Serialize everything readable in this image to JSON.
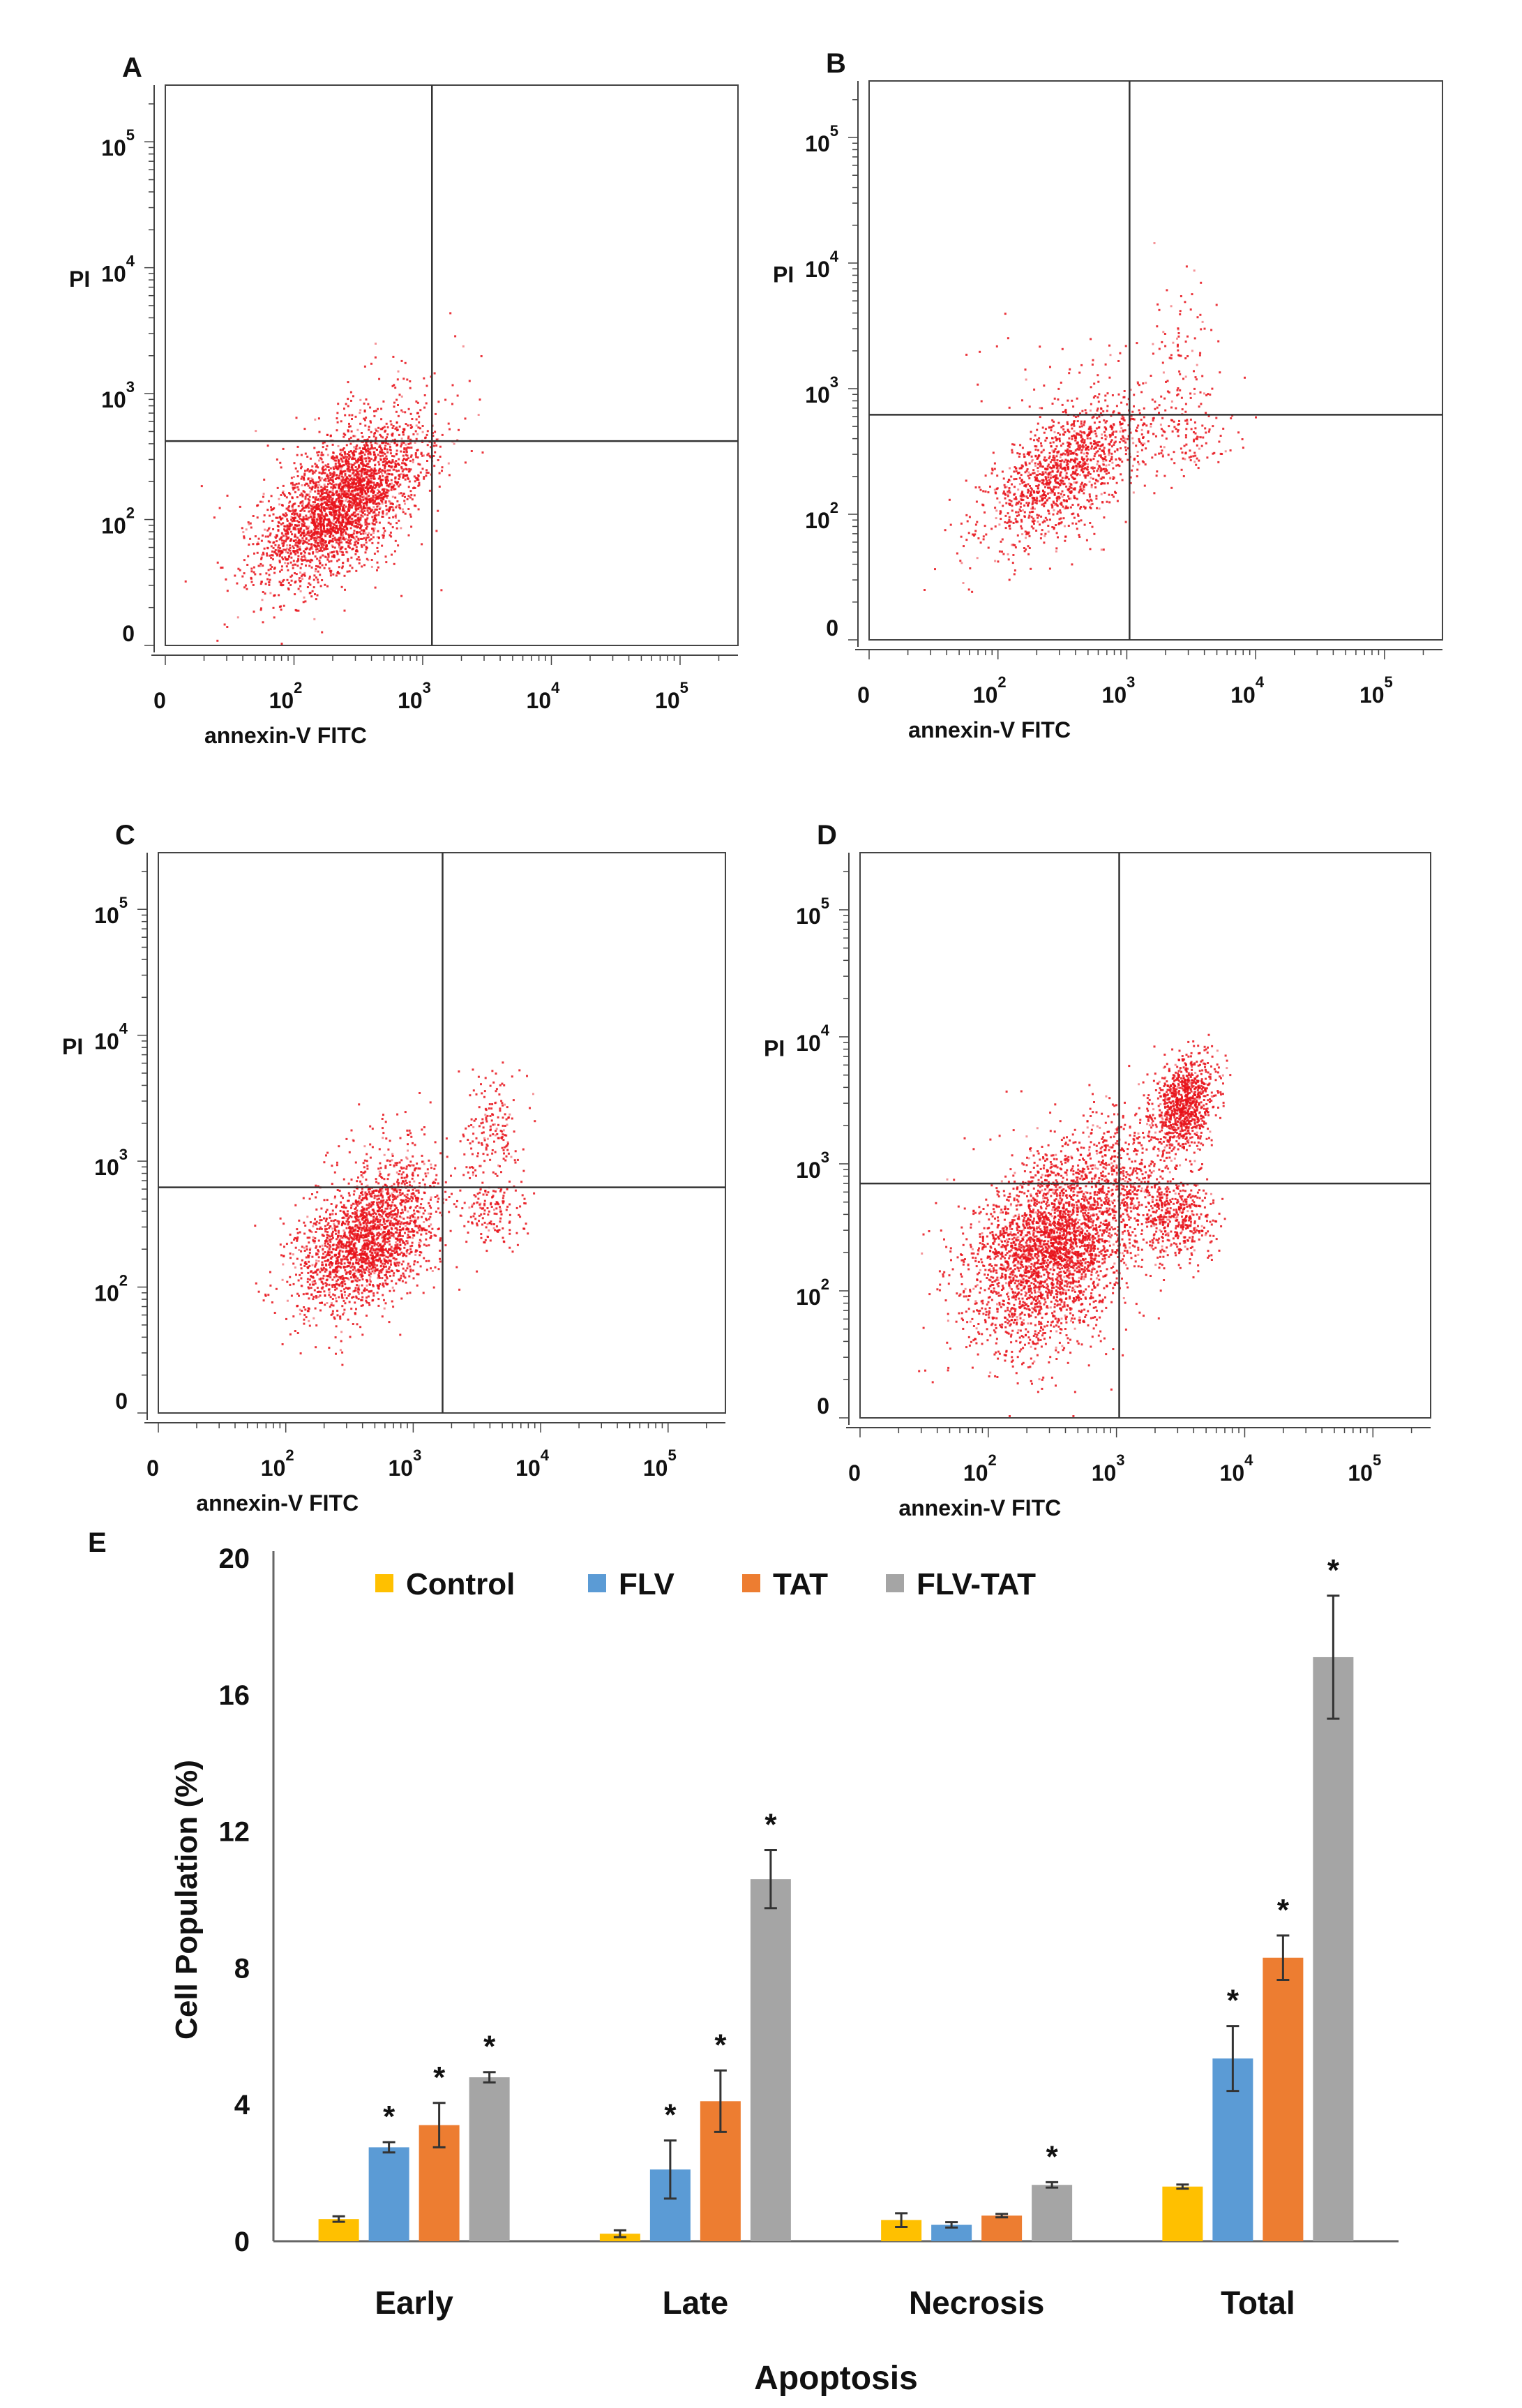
{
  "chart_data": [
    {
      "panel": "A",
      "type": "scatter",
      "xlabel": "annexin-V FITC",
      "ylabel": "PI",
      "x_ticks": [
        "0",
        "10|2",
        "10|3",
        "10|4",
        "10|5"
      ],
      "y_ticks": [
        "0",
        "10|2",
        "10|3",
        "10|4",
        "10|5"
      ],
      "quadrant": {
        "x": 1180,
        "y": 420
      },
      "clusters": [
        {
          "x": 230,
          "y": 135,
          "sx": 0.3,
          "sy": 0.3,
          "rho": 0.6,
          "n": 2600
        },
        {
          "x": 300,
          "y": 200,
          "sx": 0.4,
          "sy": 0.4,
          "rho": 0.5,
          "n": 500
        }
      ]
    },
    {
      "panel": "B",
      "type": "scatter",
      "xlabel": "annexin-V FITC",
      "ylabel": "PI",
      "x_ticks": [
        "0",
        "10|2",
        "10|3",
        "10|4",
        "10|5"
      ],
      "y_ticks": [
        "0",
        "10|2",
        "10|3",
        "10|4",
        "10|5"
      ],
      "quadrant": {
        "x": 1050,
        "y": 620
      },
      "clusters": [
        {
          "x": 320,
          "y": 220,
          "sx": 0.3,
          "sy": 0.28,
          "rho": 0.6,
          "n": 1300
        },
        {
          "x": 2700,
          "y": 1800,
          "sx": 0.12,
          "sy": 0.28,
          "rho": 0.0,
          "n": 80
        },
        {
          "x": 2600,
          "y": 420,
          "sx": 0.18,
          "sy": 0.15,
          "rho": 0.0,
          "n": 110
        },
        {
          "x": 700,
          "y": 700,
          "sx": 0.5,
          "sy": 0.4,
          "rho": 0.0,
          "n": 120
        }
      ]
    },
    {
      "panel": "C",
      "type": "scatter",
      "xlabel": "annexin-V FITC",
      "ylabel": "PI",
      "x_ticks": [
        "0",
        "10|2",
        "10|3",
        "10|4",
        "10|5"
      ],
      "y_ticks": [
        "0",
        "10|2",
        "10|3",
        "10|4",
        "10|5"
      ],
      "quadrant": {
        "x": 1700,
        "y": 620
      },
      "clusters": [
        {
          "x": 420,
          "y": 230,
          "sx": 0.27,
          "sy": 0.28,
          "rho": 0.45,
          "n": 2100
        },
        {
          "x": 4200,
          "y": 2000,
          "sx": 0.1,
          "sy": 0.22,
          "rho": 0.0,
          "n": 160
        },
        {
          "x": 4100,
          "y": 420,
          "sx": 0.13,
          "sy": 0.15,
          "rho": 0.0,
          "n": 160
        },
        {
          "x": 650,
          "y": 850,
          "sx": 0.2,
          "sy": 0.25,
          "rho": 0.0,
          "n": 140
        }
      ]
    },
    {
      "panel": "D",
      "type": "scatter",
      "xlabel": "annexin-V FITC",
      "ylabel": "PI",
      "x_ticks": [
        "0",
        "10|2",
        "10|3",
        "10|4",
        "10|5"
      ],
      "y_ticks": [
        "0",
        "10|2",
        "10|3",
        "10|4",
        "10|5"
      ],
      "quadrant": {
        "x": 1050,
        "y": 700
      },
      "clusters": [
        {
          "x": 330,
          "y": 230,
          "sx": 0.33,
          "sy": 0.38,
          "rho": 0.35,
          "n": 3300
        },
        {
          "x": 3300,
          "y": 3000,
          "sx": 0.12,
          "sy": 0.18,
          "rho": 0.3,
          "n": 900
        },
        {
          "x": 3000,
          "y": 380,
          "sx": 0.15,
          "sy": 0.15,
          "rho": 0.0,
          "n": 420
        },
        {
          "x": 1300,
          "y": 900,
          "sx": 0.25,
          "sy": 0.3,
          "rho": 0.0,
          "n": 350
        }
      ]
    },
    {
      "panel": "E",
      "type": "bar",
      "xlabel": "Apoptosis",
      "ylabel": "Cell Population (%)",
      "categories": [
        "Early",
        "Late",
        "Necrosis",
        "Total"
      ],
      "ylim": [
        0,
        20
      ],
      "yticks": [
        0,
        4,
        8,
        12,
        16,
        20
      ],
      "legend_position": "top",
      "significance_marker": "*",
      "series": [
        {
          "name": "Control",
          "color": "#FFC000",
          "values": [
            0.65,
            0.22,
            0.62,
            1.6
          ],
          "errors": [
            0.08,
            0.1,
            0.2,
            0.06
          ],
          "significant": [
            false,
            false,
            false,
            false
          ]
        },
        {
          "name": "FLV",
          "color": "#5B9BD5",
          "values": [
            2.75,
            2.1,
            0.48,
            5.35
          ],
          "errors": [
            0.15,
            0.85,
            0.08,
            0.95
          ],
          "significant": [
            true,
            true,
            false,
            true
          ]
        },
        {
          "name": "TAT",
          "color": "#ED7D31",
          "values": [
            3.4,
            4.1,
            0.75,
            8.3
          ],
          "errors": [
            0.65,
            0.9,
            0.05,
            0.65
          ],
          "significant": [
            true,
            true,
            false,
            true
          ]
        },
        {
          "name": "FLV-TAT",
          "color": "#A5A5A5",
          "values": [
            4.8,
            10.6,
            1.65,
            17.1
          ],
          "errors": [
            0.15,
            0.85,
            0.08,
            1.8
          ],
          "significant": [
            true,
            true,
            true,
            true
          ]
        }
      ]
    }
  ]
}
